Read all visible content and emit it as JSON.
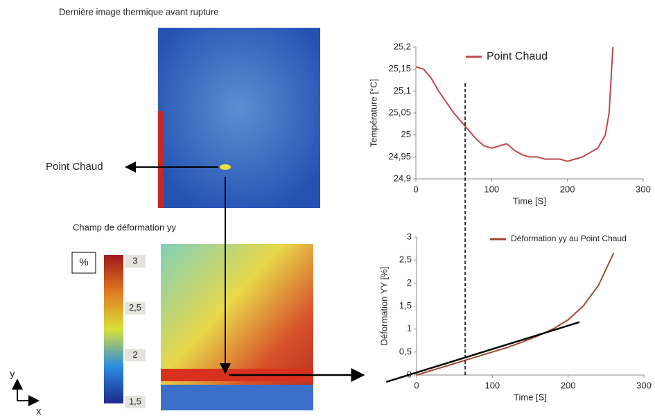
{
  "thermal_title": "Dernière image thermique avant rupture",
  "hotspot_label": "Point Chaud",
  "strain_title": "Champ de déformation yy",
  "colorbar": {
    "unit": "%",
    "lim": [
      1.5,
      3
    ],
    "ticks": [
      3,
      {
        "value": 2.5,
        "label": "2,5"
      },
      2,
      {
        "value": 1.5,
        "label": "1,5"
      }
    ]
  },
  "axes_icon": {
    "y": "y",
    "x": "x"
  },
  "chart_data": [
    {
      "type": "line",
      "ylabel": "Température [°C]",
      "xlabel": "Time [S]",
      "x": [
        0,
        10,
        20,
        30,
        40,
        50,
        60,
        70,
        80,
        90,
        100,
        110,
        120,
        130,
        140,
        150,
        160,
        170,
        180,
        190,
        200,
        210,
        220,
        230,
        240,
        250,
        255,
        260
      ],
      "series": [
        {
          "name": "Point Chaud",
          "color": "#c0474a",
          "values": [
            25.155,
            25.15,
            25.13,
            25.1,
            25.075,
            25.05,
            25.03,
            25.01,
            24.99,
            24.975,
            24.97,
            24.975,
            24.98,
            24.965,
            24.955,
            24.95,
            24.95,
            24.945,
            24.945,
            24.945,
            24.94,
            24.945,
            24.95,
            24.96,
            24.97,
            25.0,
            25.05,
            25.2
          ]
        }
      ],
      "xlim": [
        0,
        300
      ],
      "xticks": [
        0,
        100,
        200,
        300
      ],
      "ylim": [
        24.9,
        25.2
      ],
      "yticks": [
        {
          "value": 24.9,
          "label": "24,9"
        },
        {
          "value": 24.95,
          "label": "24,95"
        },
        25,
        {
          "value": 25.05,
          "label": "25,05"
        },
        {
          "value": 25.1,
          "label": "25,1"
        },
        {
          "value": 25.15,
          "label": "25,15"
        },
        {
          "value": 25.2,
          "label": "25,2"
        }
      ],
      "vline_x": 65
    },
    {
      "type": "line",
      "ylabel": "Déformation YY [%]",
      "xlabel": "Time [S]",
      "x": [
        0,
        20,
        40,
        60,
        80,
        100,
        120,
        140,
        160,
        180,
        200,
        220,
        240,
        260
      ],
      "series": [
        {
          "name": "Déformation yy au Point Chaud",
          "color": "#9c4a2a",
          "values": [
            0,
            0.1,
            0.2,
            0.3,
            0.4,
            0.5,
            0.6,
            0.72,
            0.85,
            1.0,
            1.2,
            1.5,
            1.95,
            2.65
          ]
        },
        {
          "color": "#000000",
          "x": [
            -40,
            215
          ],
          "values": [
            -0.15,
            1.15
          ]
        }
      ],
      "xlim": [
        0,
        300
      ],
      "xticks": [
        0,
        100,
        200,
        300
      ],
      "ylim": [
        0,
        3
      ],
      "yticks": [
        0,
        {
          "value": 0.5,
          "label": "0,5"
        },
        1,
        {
          "value": 1.5,
          "label": "1,5"
        },
        2,
        {
          "value": 2.5,
          "label": "2,5"
        },
        3
      ]
    }
  ]
}
